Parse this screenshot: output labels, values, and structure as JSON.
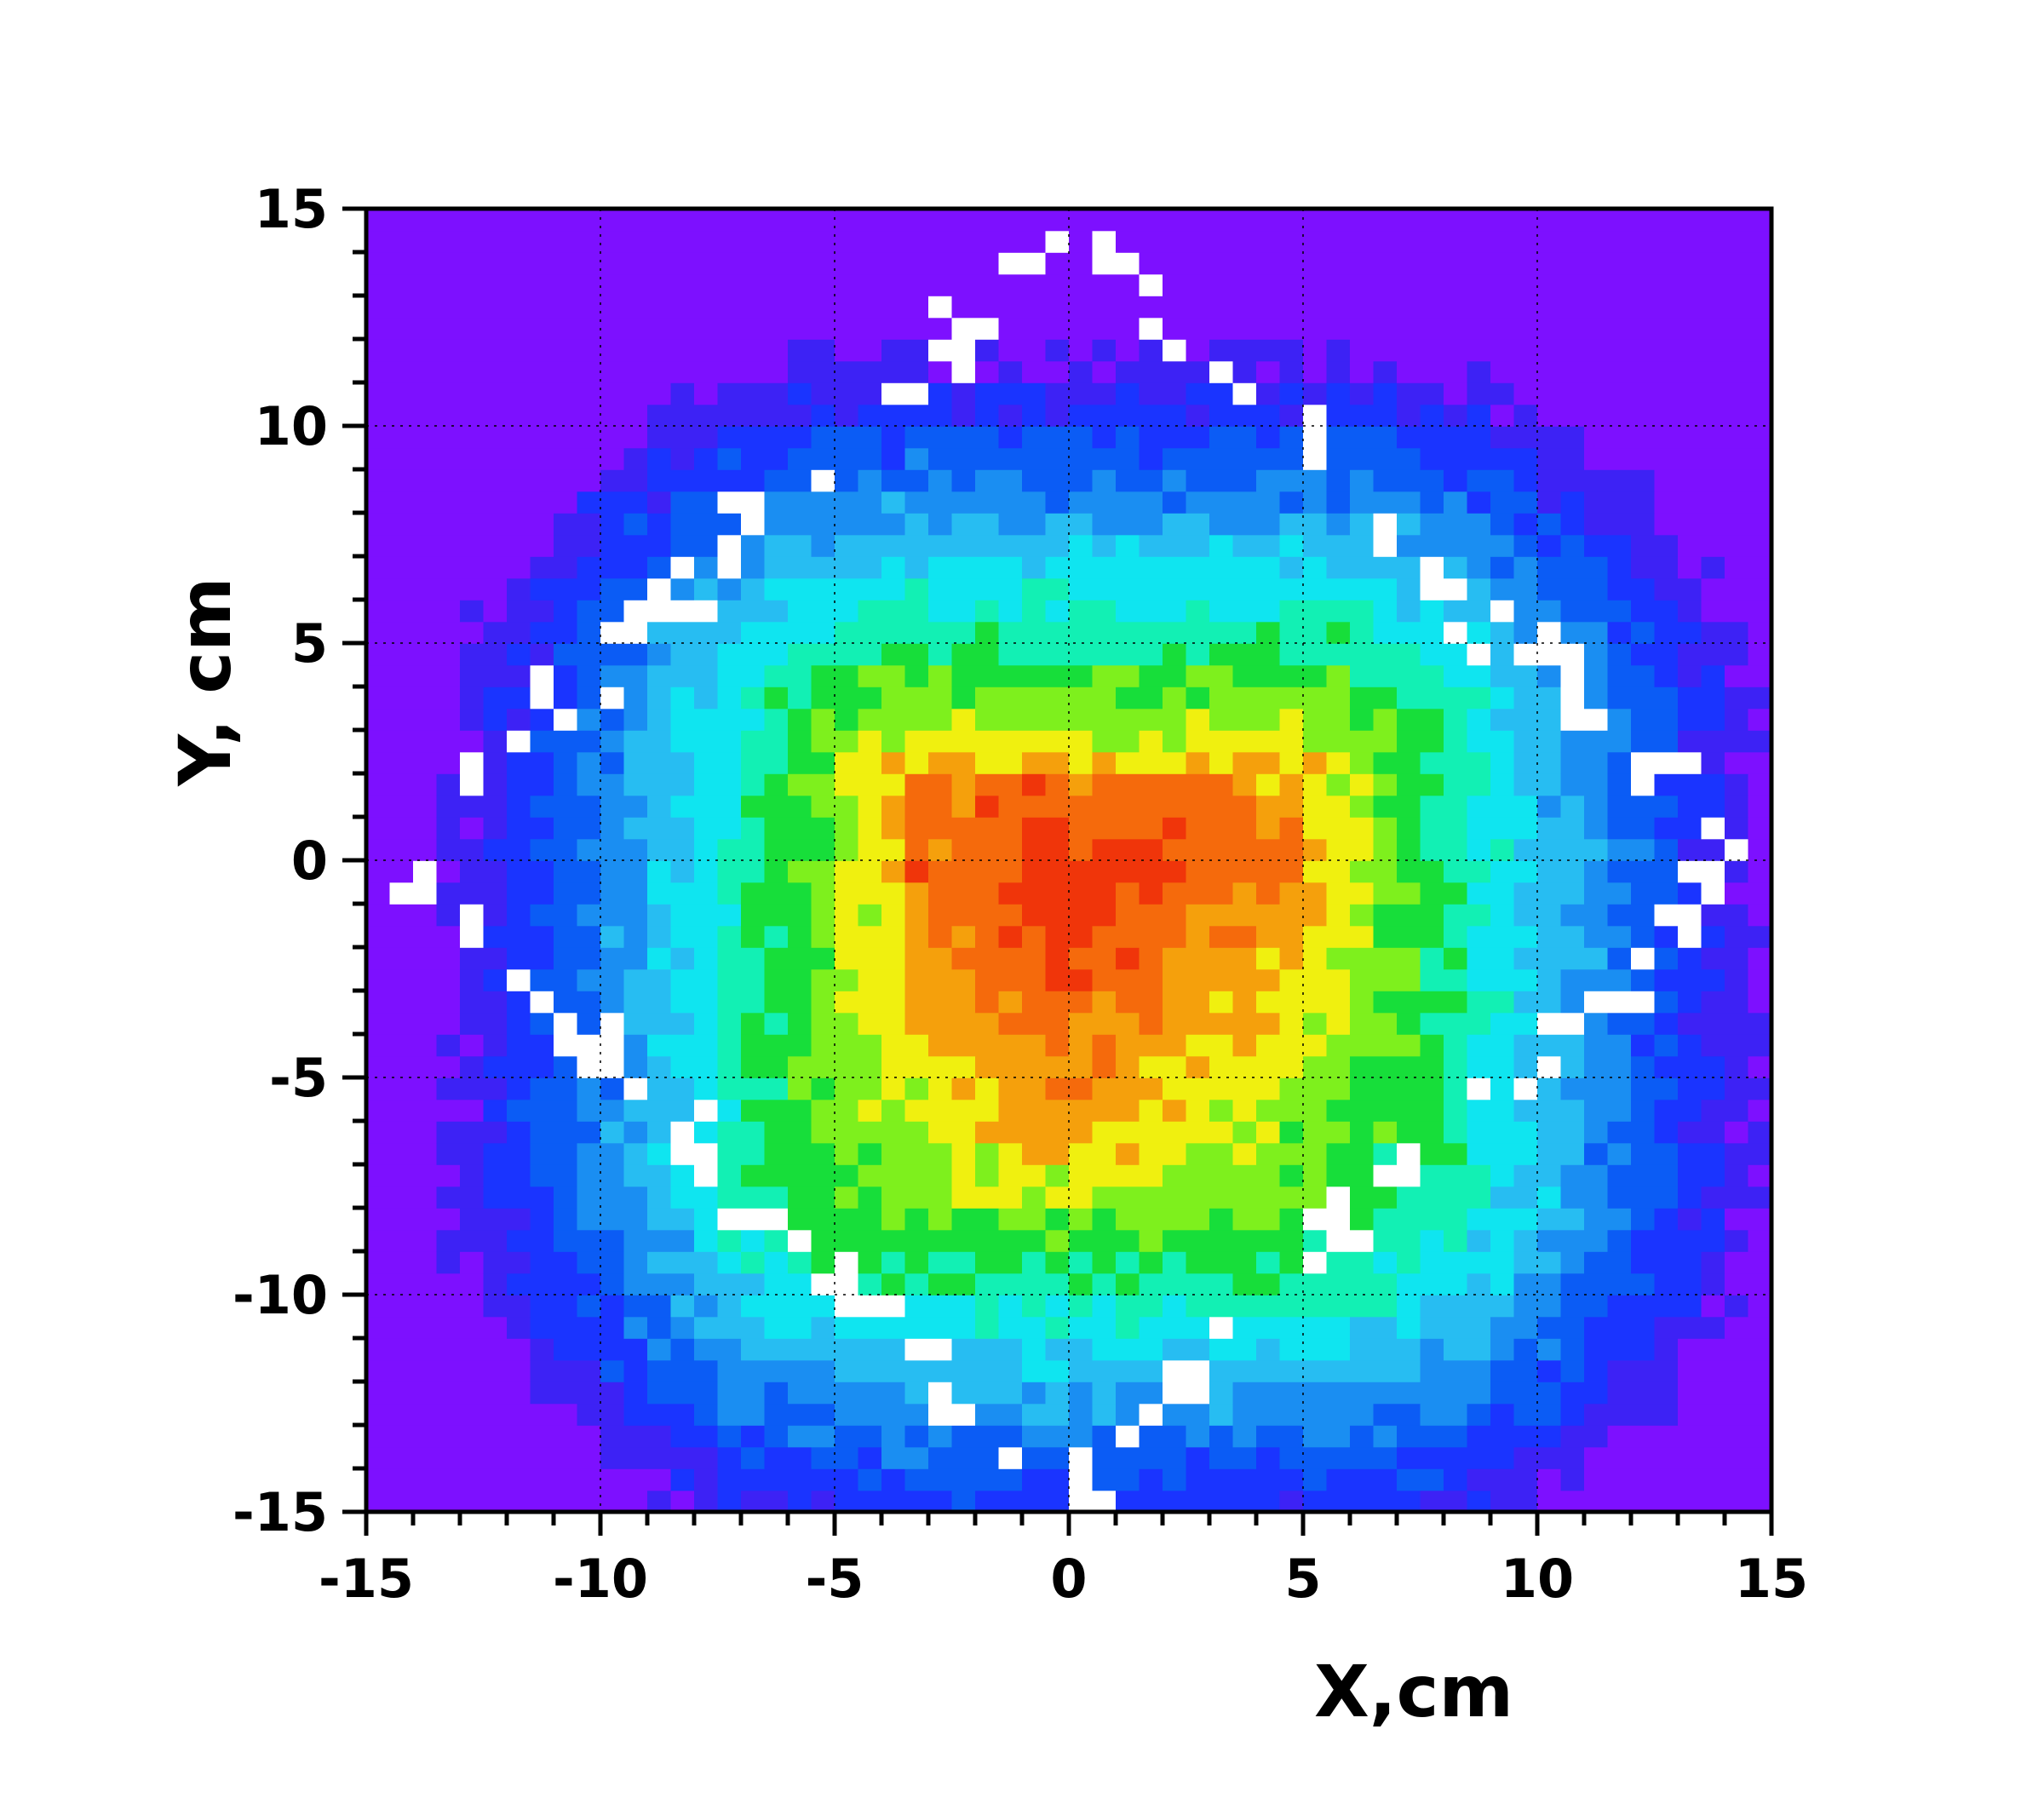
{
  "chart_data": {
    "type": "heatmap",
    "xlabel": "X,cm",
    "ylabel": "Y, cm",
    "xlim": [
      -15,
      15
    ],
    "ylim": [
      -15,
      15
    ],
    "xticks": [
      -15,
      -10,
      -5,
      0,
      5,
      10,
      15
    ],
    "yticks": [
      -15,
      -10,
      -5,
      0,
      5,
      10,
      15
    ],
    "x_tick_labels": [
      "-15",
      "-10",
      "-5",
      "0",
      "5",
      "10",
      "15"
    ],
    "y_tick_labels": [
      "-15",
      "-10",
      "-5",
      "0",
      "5",
      "10",
      "15"
    ],
    "minor_tick_step": 1,
    "grid": true,
    "grid_style": "dotted",
    "colorbar": "none",
    "colormap": [
      "#7d10ff",
      "#3d22f5",
      "#1a34ff",
      "#0b5cf5",
      "#1a8ef2",
      "#27bdf2",
      "#0fe5f0",
      "#12f0b4",
      "#17de3a",
      "#7ef01d",
      "#f0f00f",
      "#f5a00c",
      "#f56a0c",
      "#f0350a",
      "#e81f07"
    ],
    "field_description": "Hot rectangle approx. x from -3.5 to 5 and y from -6.5 to 2, peak near x=2, y=-4; field decays outward along a diamond-shaped (rotated square) pattern with lowest levels in the four corners; white speckled gaps along the diagonal bands",
    "hot_region": {
      "x": [
        -3.5,
        5
      ],
      "y": [
        -6.5,
        2
      ]
    },
    "peak": {
      "x": 2,
      "y": -4
    }
  }
}
